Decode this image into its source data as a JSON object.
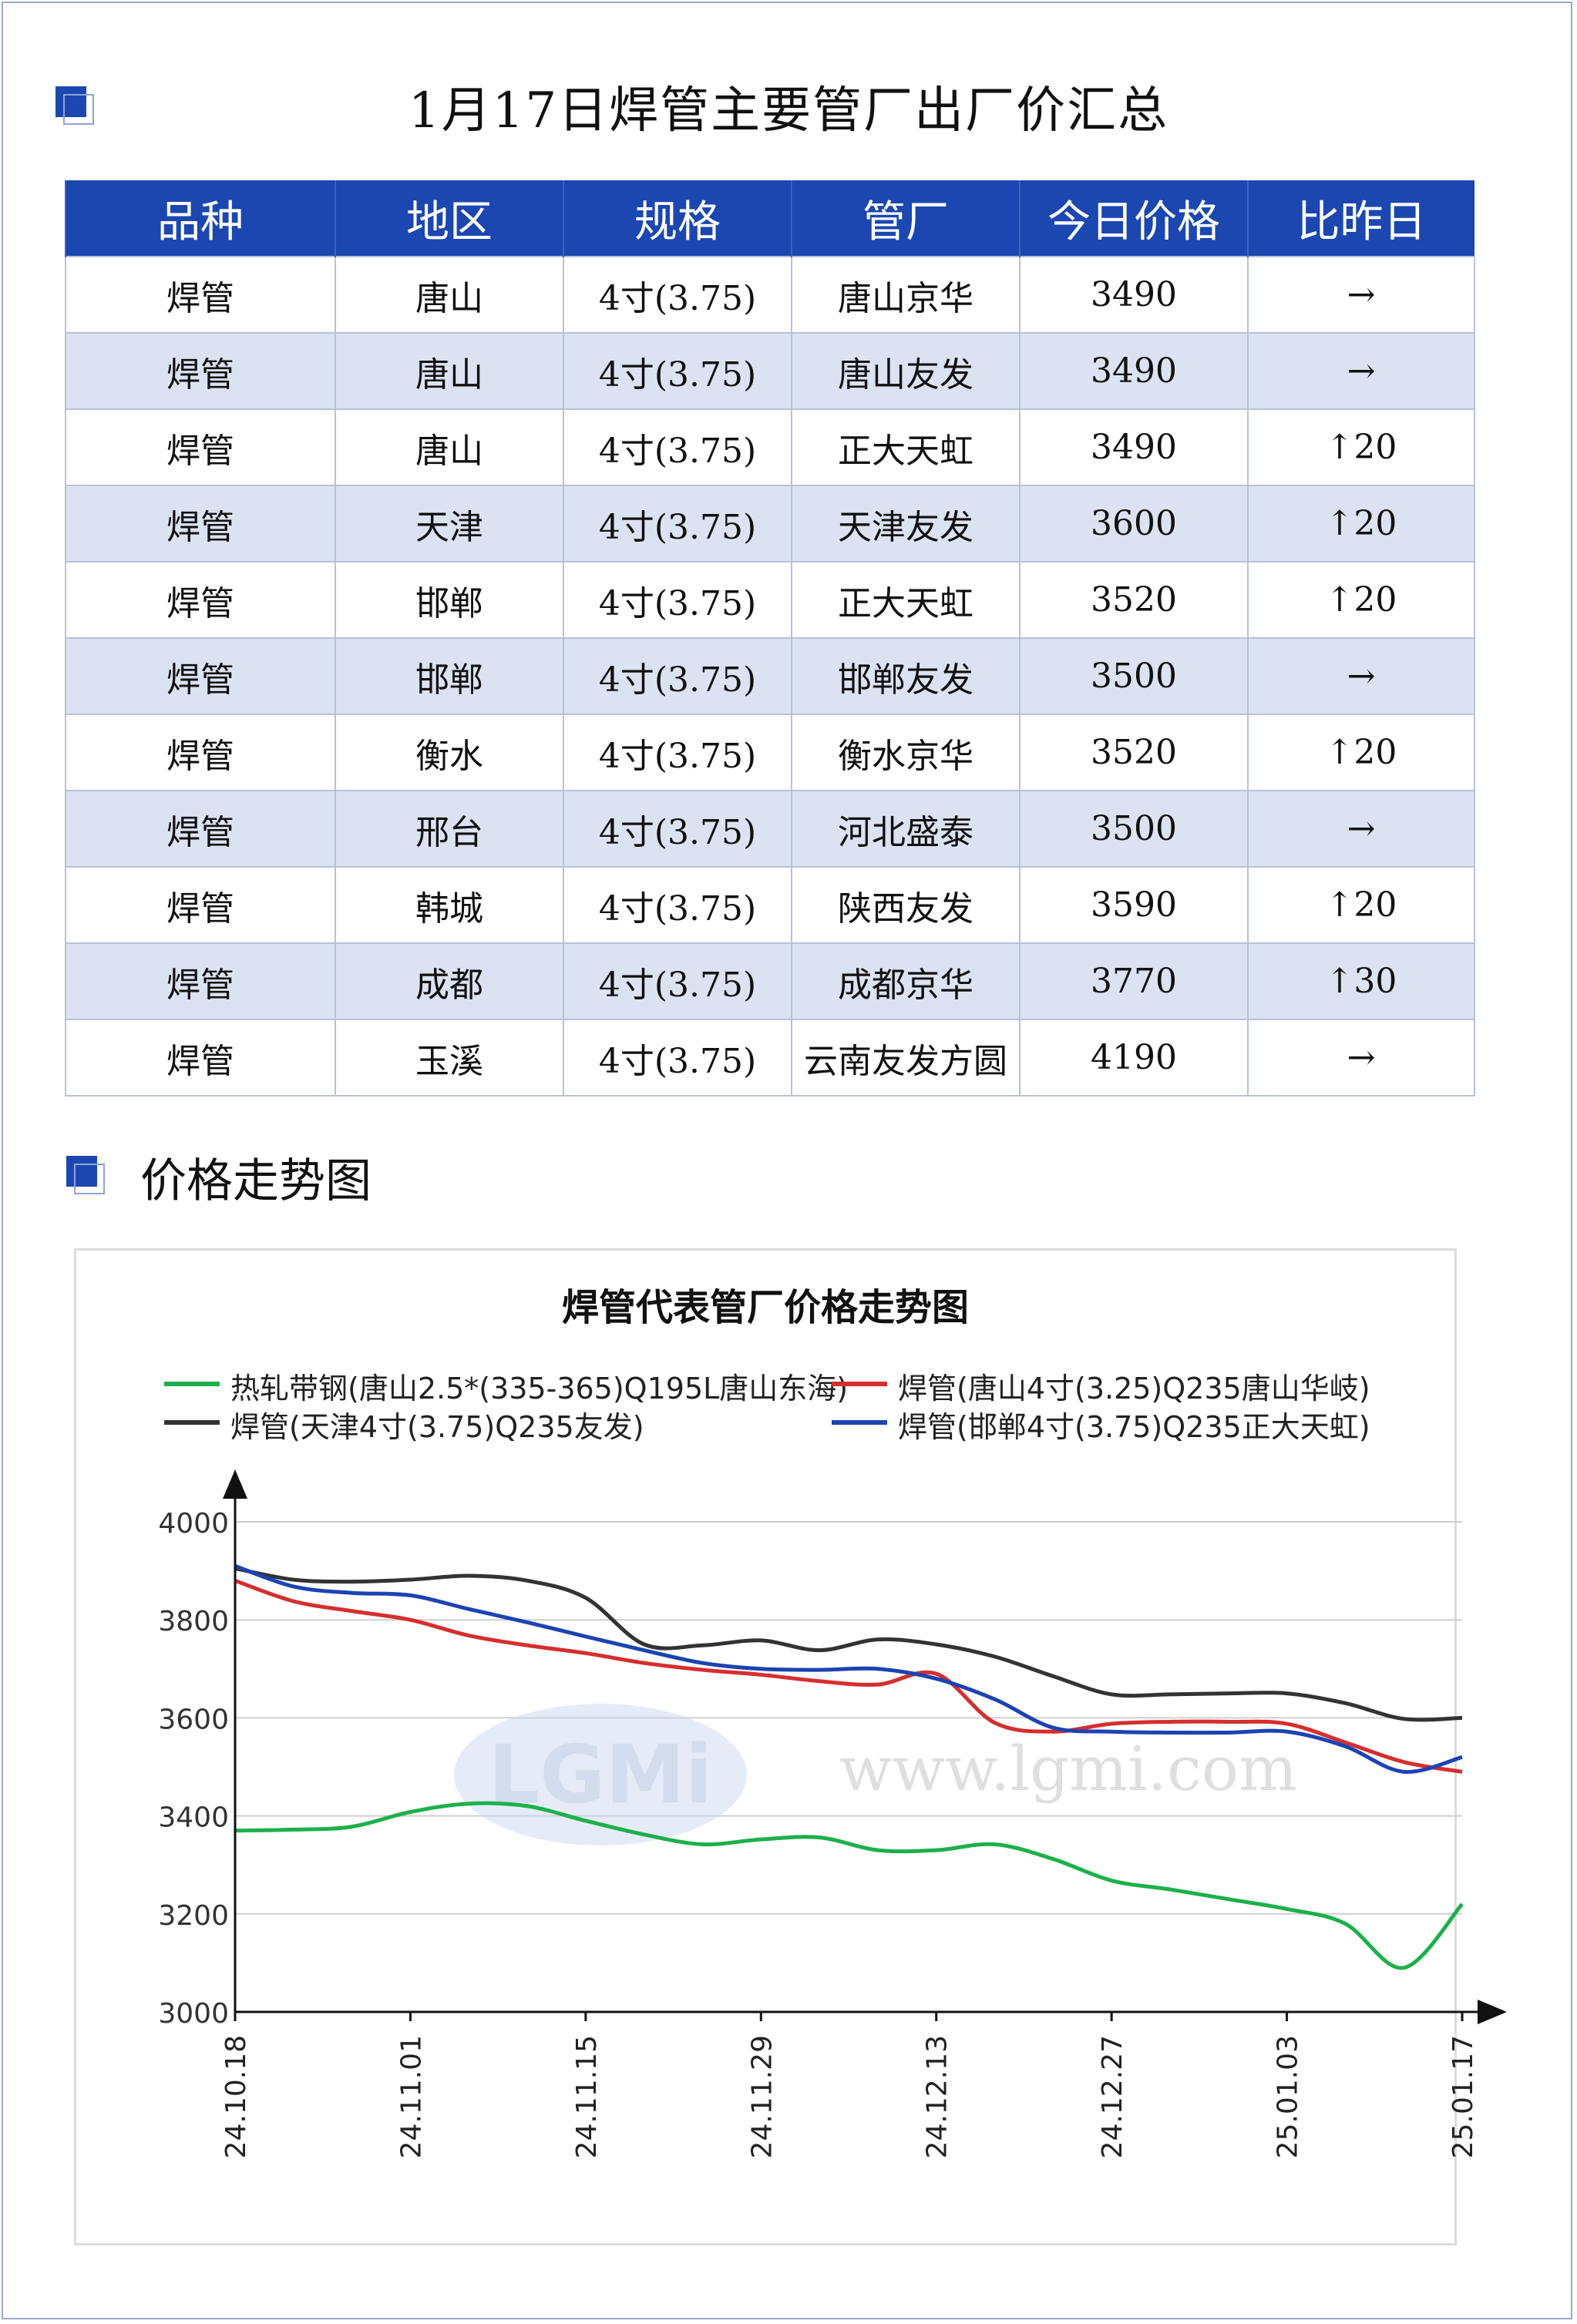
{
  "page": {
    "title": "1月17日焊管主要管厂出厂价汇总",
    "section_title": "价格走势图"
  },
  "table": {
    "headers": [
      "品种",
      "地区",
      "规格",
      "管厂",
      "今日价格",
      "比昨日"
    ],
    "rows": [
      {
        "variety": "焊管",
        "region": "唐山",
        "spec": "4寸(3.75)",
        "mill": "唐山京华",
        "price": "3490",
        "change": "→",
        "up": false
      },
      {
        "variety": "焊管",
        "region": "唐山",
        "spec": "4寸(3.75)",
        "mill": "唐山友发",
        "price": "3490",
        "change": "→",
        "up": false
      },
      {
        "variety": "焊管",
        "region": "唐山",
        "spec": "4寸(3.75)",
        "mill": "正大天虹",
        "price": "3490",
        "change": "↑20",
        "up": true
      },
      {
        "variety": "焊管",
        "region": "天津",
        "spec": "4寸(3.75)",
        "mill": "天津友发",
        "price": "3600",
        "change": "↑20",
        "up": true
      },
      {
        "variety": "焊管",
        "region": "邯郸",
        "spec": "4寸(3.75)",
        "mill": "正大天虹",
        "price": "3520",
        "change": "↑20",
        "up": true
      },
      {
        "variety": "焊管",
        "region": "邯郸",
        "spec": "4寸(3.75)",
        "mill": "邯郸友发",
        "price": "3500",
        "change": "→",
        "up": false
      },
      {
        "variety": "焊管",
        "region": "衡水",
        "spec": "4寸(3.75)",
        "mill": "衡水京华",
        "price": "3520",
        "change": "↑20",
        "up": true
      },
      {
        "variety": "焊管",
        "region": "邢台",
        "spec": "4寸(3.75)",
        "mill": "河北盛泰",
        "price": "3500",
        "change": "→",
        "up": false
      },
      {
        "variety": "焊管",
        "region": "韩城",
        "spec": "4寸(3.75)",
        "mill": "陕西友发",
        "price": "3590",
        "change": "↑20",
        "up": true
      },
      {
        "variety": "焊管",
        "region": "成都",
        "spec": "4寸(3.75)",
        "mill": "成都京华",
        "price": "3770",
        "change": "↑30",
        "up": true
      },
      {
        "variety": "焊管",
        "region": "玉溪",
        "spec": "4寸(3.75)",
        "mill": "云南友发方圆",
        "price": "4190",
        "change": "→",
        "up": false
      }
    ]
  },
  "colors": {
    "header_bg": "#1c47b0",
    "alt_row_bg": "#dbe3f3",
    "up": "#e60000"
  },
  "chart_data": {
    "type": "line",
    "title": "焊管代表管厂价格走势图",
    "x_ticks": [
      "24.10.18",
      "24.11.01",
      "24.11.15",
      "24.11.29",
      "24.12.13",
      "24.12.27",
      "25.01.03",
      "25.01.17"
    ],
    "ylim": [
      3000,
      4000
    ],
    "y_ticks": [
      3000,
      3200,
      3400,
      3600,
      3800,
      4000
    ],
    "grid": true,
    "legend_position": "top",
    "watermark": "www.lgmi.com",
    "watermark_logo": "LGMi",
    "series": [
      {
        "name": "热轧带钢(唐山2.5*(335-365)Q195L唐山东海)",
        "color": "#1db04a",
        "x": [
          0,
          2,
          4,
          6,
          8,
          10,
          12,
          14,
          16,
          18,
          20,
          22,
          24,
          26,
          28,
          30,
          32,
          34,
          36,
          38,
          40,
          42
        ],
        "y": [
          3370,
          3372,
          3378,
          3408,
          3425,
          3420,
          3390,
          3362,
          3342,
          3352,
          3356,
          3330,
          3330,
          3342,
          3312,
          3268,
          3250,
          3230,
          3210,
          3180,
          3090,
          3220
        ]
      },
      {
        "name": "焊管(唐山4寸(3.25)Q235唐山华岐)",
        "color": "#d62e2e",
        "x": [
          0,
          2,
          4,
          6,
          8,
          10,
          12,
          14,
          16,
          18,
          20,
          22,
          24,
          26,
          28,
          30,
          32,
          34,
          36,
          38,
          40,
          42
        ],
        "y": [
          3880,
          3838,
          3818,
          3800,
          3768,
          3748,
          3732,
          3712,
          3698,
          3688,
          3675,
          3668,
          3690,
          3590,
          3572,
          3588,
          3592,
          3592,
          3588,
          3550,
          3510,
          3490
        ]
      },
      {
        "name": "焊管(天津4寸(3.75)Q235友发)",
        "color": "#333333",
        "x": [
          0,
          2,
          4,
          6,
          8,
          10,
          12,
          14,
          16,
          18,
          20,
          22,
          24,
          26,
          28,
          30,
          32,
          34,
          36,
          38,
          40,
          42
        ],
        "y": [
          3905,
          3882,
          3878,
          3882,
          3890,
          3880,
          3845,
          3750,
          3748,
          3758,
          3738,
          3760,
          3750,
          3725,
          3685,
          3648,
          3648,
          3650,
          3650,
          3630,
          3598,
          3600
        ]
      },
      {
        "name": "焊管(邯郸4寸(3.75)Q235正大天虹)",
        "color": "#1c43b3",
        "x": [
          0,
          2,
          4,
          6,
          8,
          10,
          12,
          14,
          16,
          18,
          20,
          22,
          24,
          26,
          28,
          30,
          32,
          34,
          36,
          38,
          40,
          42
        ],
        "y": [
          3910,
          3868,
          3855,
          3850,
          3822,
          3795,
          3766,
          3738,
          3712,
          3700,
          3698,
          3700,
          3680,
          3638,
          3580,
          3572,
          3570,
          3570,
          3572,
          3542,
          3490,
          3520
        ]
      }
    ]
  }
}
